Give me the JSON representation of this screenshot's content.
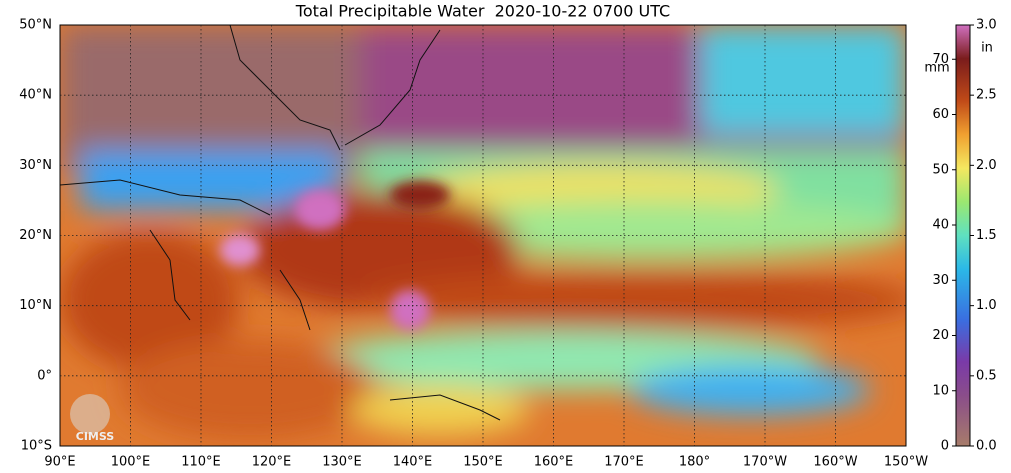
{
  "title": "Total Precipitable Water  2020-10-22 0700 UTC",
  "map": {
    "lon_labels": [
      "90°E",
      "100°E",
      "110°E",
      "120°E",
      "130°E",
      "140°E",
      "150°E",
      "160°E",
      "170°E",
      "180°",
      "170°W",
      "160°W",
      "150°W"
    ],
    "lat_labels": [
      "50°N",
      "40°N",
      "30°N",
      "20°N",
      "10°N",
      "0°",
      "10°S"
    ]
  },
  "colorbar": {
    "unit_mm": "mm",
    "unit_in": "in",
    "range_mm": [
      0,
      76.2
    ],
    "mm_ticks": [
      0,
      10,
      20,
      30,
      40,
      50,
      60,
      70
    ],
    "in_ticks": [
      {
        "value": 0,
        "label": "0.0"
      },
      {
        "value": 0.5,
        "label": "0.5"
      },
      {
        "value": 1,
        "label": "1.0"
      },
      {
        "value": 1.5,
        "label": "1.5"
      },
      {
        "value": 2,
        "label": "2.0"
      },
      {
        "value": 2.5,
        "label": "2.5"
      },
      {
        "value": 3,
        "label": "3.0"
      }
    ]
  },
  "logo": "CIMSS"
}
